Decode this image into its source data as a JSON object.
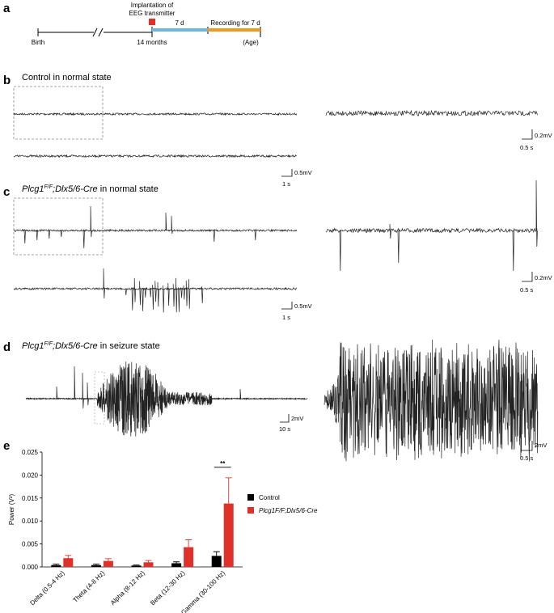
{
  "panel_a": {
    "label": "a",
    "implant_line1": "Implantation of",
    "implant_line2": "EEG transmitter",
    "interval": "7 d",
    "recording": "Recording for 7 d",
    "birth": "Birth",
    "age_mark": "14 months",
    "axis_unit": "(Age)"
  },
  "genotype": {
    "gene": "Plcg1",
    "allele": "F/F",
    "driver": ";Dlx5/6-Cre"
  },
  "panel_b": {
    "label": "b",
    "title": "Control in normal state",
    "scale_v": "0.5mV",
    "scale_t": "1 s",
    "zoom_scale_v": "0.2mV",
    "zoom_scale_t": "0.5 s"
  },
  "panel_c": {
    "label": "c",
    "state": " in normal state",
    "scale_v": "0.5mV",
    "scale_t": "1 s",
    "zoom_scale_v": "0.2mV",
    "zoom_scale_t": "0.5 s"
  },
  "panel_d": {
    "label": "d",
    "state": " in seizure state",
    "scale_v": "2mV",
    "scale_t": "10 s",
    "zoom_scale_v": "2mV",
    "zoom_scale_t": "0.5 s"
  },
  "panel_e": {
    "label": "e"
  },
  "chart_data": {
    "type": "bar",
    "y_label": "Power (V²)",
    "categories": [
      "Delta (0.5-4 Hz)",
      "Theta (4-8 Hz)",
      "Alpha (8-12 Hz)",
      "Beta (12-30 Hz)",
      "Gamma (30-100 Hz)"
    ],
    "series": [
      {
        "name": "Control",
        "color": "#000000",
        "values": [
          0.0004,
          0.0004,
          0.0003,
          0.0008,
          0.0024
        ],
        "errors": [
          0.0002,
          0.0002,
          0.0001,
          0.0003,
          0.0009
        ]
      },
      {
        "name": "Plcg1F/F;Dlx5/6-Cre",
        "color": "#e0302a",
        "values": [
          0.0019,
          0.0013,
          0.001,
          0.0043,
          0.0138
        ],
        "errors": [
          0.0006,
          0.0005,
          0.0004,
          0.0016,
          0.0056
        ]
      }
    ],
    "ylim": [
      0,
      0.025
    ],
    "yticks": [
      {
        "value": 0,
        "label": "0.000"
      },
      {
        "value": 0.005,
        "label": "0.005"
      },
      {
        "value": 0.01,
        "label": "0.010"
      },
      {
        "value": 0.015,
        "label": "0.015"
      },
      {
        "value": 0.02,
        "label": "0.020"
      },
      {
        "value": 0.025,
        "label": "0.025"
      }
    ],
    "annotation": "**"
  }
}
